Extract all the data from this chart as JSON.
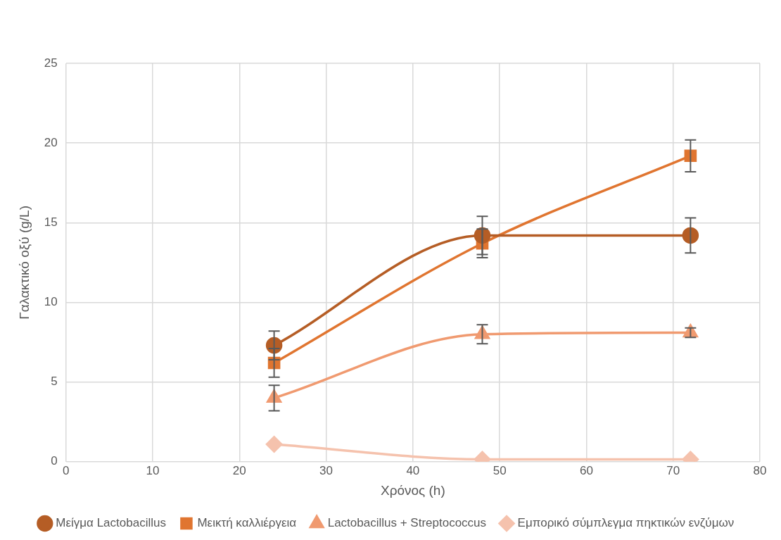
{
  "chart_data": {
    "type": "line",
    "xlabel": "Χρόνος (h)",
    "ylabel": "Γαλακτικό οξύ (g/L)",
    "x": [
      24,
      48,
      72
    ],
    "xlim": [
      0,
      80
    ],
    "xticks": [
      0,
      10,
      20,
      30,
      40,
      50,
      60,
      70,
      80
    ],
    "ylim": [
      0,
      25
    ],
    "yticks": [
      0,
      5,
      10,
      15,
      20,
      25
    ],
    "grid": true,
    "legend": "bottom",
    "series": [
      {
        "name": "Μείγμα Lactobacillus",
        "color": "#b55d25",
        "marker": "circle",
        "values": [
          7.3,
          14.2,
          14.2
        ],
        "errors": [
          0.9,
          1.2,
          1.1
        ]
      },
      {
        "name": "Μεικτή καλλιέργεια",
        "color": "#e07530",
        "marker": "square",
        "values": [
          6.2,
          13.7,
          19.2
        ],
        "errors": [
          0.9,
          0.9,
          1.0
        ]
      },
      {
        "name": "Lactobacillus + Streptococcus",
        "color": "#f09a70",
        "marker": "triangle",
        "values": [
          4.0,
          8.0,
          8.1
        ],
        "errors": [
          0.8,
          0.6,
          0.3
        ]
      },
      {
        "name": "Εμπορικό σύμπλεγμα πηκτικών ενζύμων",
        "color": "#f5c2ad",
        "marker": "diamond",
        "values": [
          1.1,
          0.15,
          0.15
        ]
      }
    ]
  }
}
